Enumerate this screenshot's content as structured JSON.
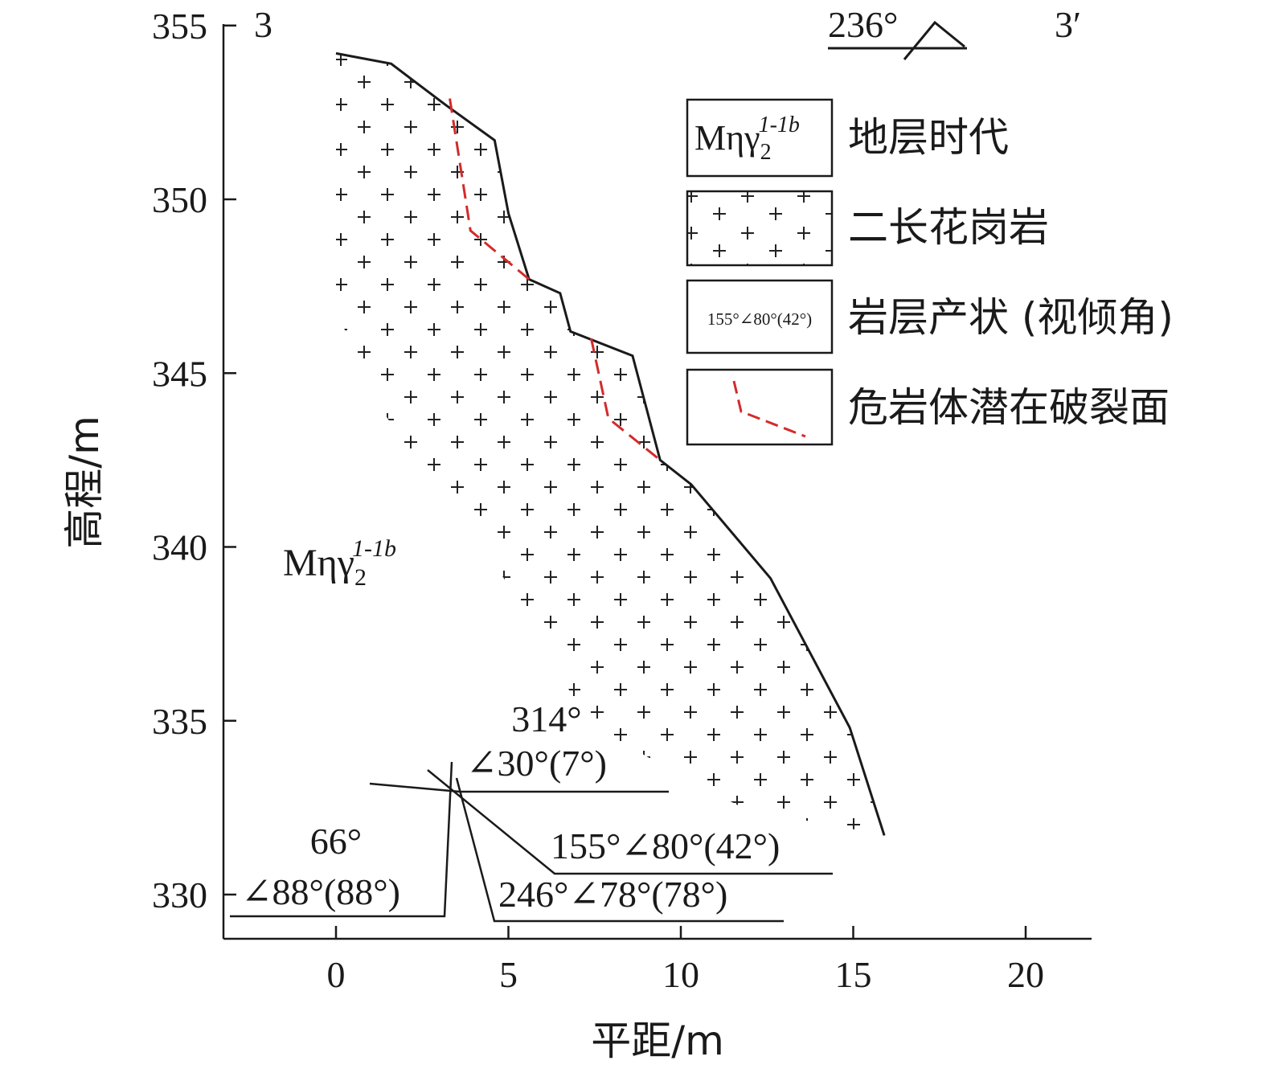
{
  "axes": {
    "x_title": "平距/m",
    "y_title": "高程/m",
    "x_ticks": [
      "0",
      "5",
      "10",
      "15",
      "20"
    ],
    "y_ticks": [
      "355",
      "350",
      "345",
      "340",
      "335",
      "330"
    ],
    "x_range": [
      -3.3,
      22
    ],
    "y_range": [
      328.7,
      355
    ]
  },
  "section": {
    "start_label": "3",
    "end_label": "3′",
    "direction": "236°"
  },
  "stratum_label": {
    "main": "Mηγ",
    "sub": "2",
    "sup": "1-1b"
  },
  "profile": {
    "ground_line": [
      [
        0,
        354.2
      ],
      [
        1.6,
        353.9
      ],
      [
        3.2,
        352.7
      ],
      [
        4.6,
        351.7
      ],
      [
        5,
        349.6
      ],
      [
        5.6,
        347.7
      ],
      [
        6.5,
        347.3
      ],
      [
        6.8,
        346.2
      ],
      [
        8.6,
        345.5
      ],
      [
        9.4,
        342.5
      ],
      [
        10.3,
        341.8
      ],
      [
        12.6,
        339.1
      ],
      [
        14.9,
        334.8
      ],
      [
        15.9,
        331.7
      ]
    ],
    "failure_surface": [
      [
        3.3,
        352.9
      ],
      [
        3.9,
        349.1
      ],
      [
        5.6,
        347.7
      ]
    ],
    "failure_surface_2": [
      [
        7.4,
        346.0
      ],
      [
        7.9,
        343.7
      ],
      [
        9.4,
        342.5
      ]
    ],
    "granite_fill_color": "#ffffff",
    "failure_color": "#d42a2a"
  },
  "legend": [
    {
      "symbol": "stratum",
      "label": "地层时代"
    },
    {
      "symbol": "granite",
      "label": "二长花岗岩"
    },
    {
      "symbol": "attitude",
      "sample": "155°∠80°(42°)",
      "label": "岩层产状 (视倾角)"
    },
    {
      "symbol": "failure",
      "label": "危岩体潜在破裂面"
    }
  ],
  "attitudes": [
    {
      "line1": "314°",
      "line2": "∠30°(7°)"
    },
    {
      "line1": "66°",
      "line2": "∠88°(88°)"
    },
    {
      "line1": "155°∠80°(42°)"
    },
    {
      "line1": "246°∠78°(78°)"
    }
  ]
}
